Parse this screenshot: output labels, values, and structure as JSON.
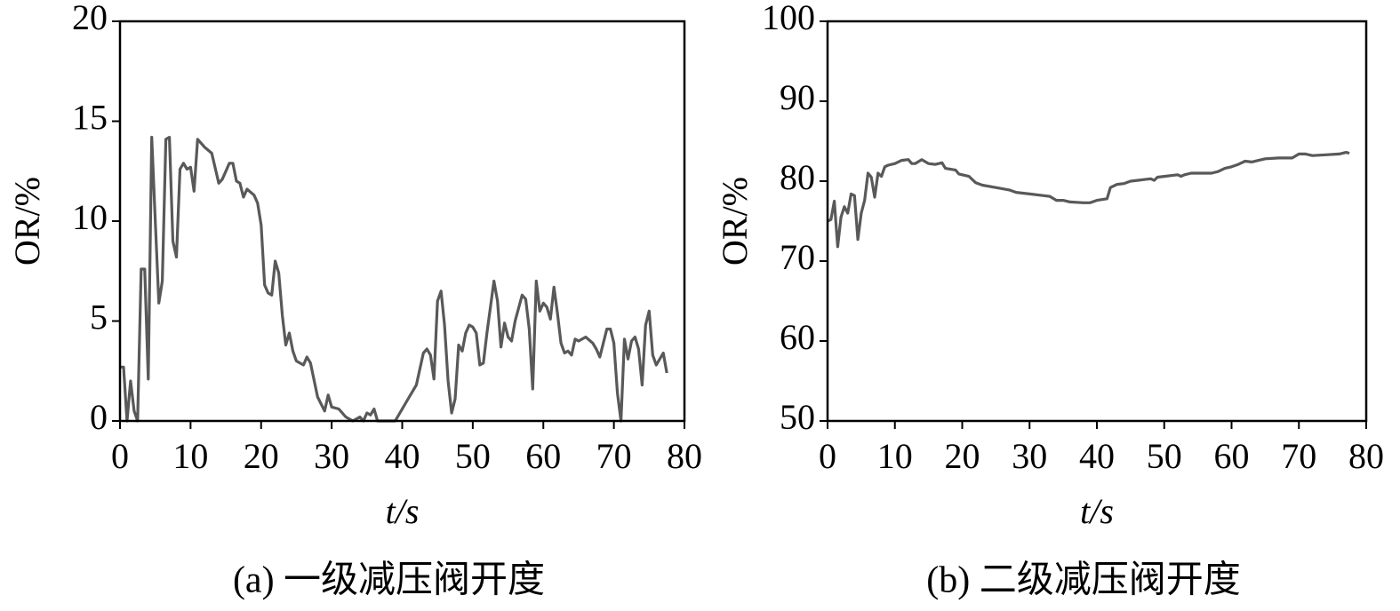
{
  "chart_data": [
    {
      "type": "line",
      "ylabel": "OR/%",
      "xlabel": "t/s",
      "caption": "(a) 一级减压阀开度",
      "color": "#595959",
      "xlim": [
        0,
        80
      ],
      "xticks": [
        0,
        10,
        20,
        30,
        40,
        50,
        60,
        70,
        80
      ],
      "ylim": [
        0,
        20
      ],
      "yticks": [
        0,
        5,
        10,
        15,
        20
      ],
      "x": [
        0,
        0.5,
        1,
        1.5,
        2,
        2.5,
        3,
        3.5,
        4,
        4.5,
        5,
        5.5,
        6,
        6.5,
        7,
        7.5,
        8,
        8.5,
        9,
        9.5,
        10,
        10.5,
        11,
        12,
        13,
        14,
        14.5,
        15,
        15.5,
        16,
        16.5,
        17,
        17.5,
        18,
        19,
        19.5,
        20,
        20.5,
        21,
        21.5,
        22,
        22.5,
        23,
        23.5,
        24,
        24.5,
        25,
        26,
        26.5,
        27,
        28,
        29,
        29.5,
        30,
        31,
        32,
        33,
        34,
        34.5,
        35,
        35.5,
        36,
        36.5,
        38,
        39,
        40,
        41,
        42,
        43,
        43.5,
        44,
        44.5,
        45,
        45.5,
        46,
        46.5,
        47,
        47.5,
        48,
        48.5,
        49,
        49.5,
        50,
        50.5,
        51,
        51.5,
        52,
        53,
        53.5,
        54,
        54.5,
        55,
        55.5,
        56,
        57,
        57.5,
        58,
        58.5,
        59,
        59.5,
        60,
        60.5,
        61,
        61.5,
        62,
        62.5,
        63,
        63.5,
        64,
        64.5,
        65,
        66,
        67,
        67.5,
        68,
        69,
        69.5,
        70,
        70.5,
        71,
        71.5,
        72,
        72.5,
        73,
        73.5,
        74,
        74.5,
        75,
        75.5,
        76,
        77,
        77.5
      ],
      "values": [
        2.7,
        2.7,
        0,
        2,
        0.5,
        0,
        7.6,
        7.6,
        2.1,
        14.2,
        10,
        5.9,
        7,
        14.1,
        14.2,
        9,
        8.2,
        12.6,
        12.9,
        12.6,
        12.7,
        11.5,
        14.1,
        13.7,
        13.4,
        11.9,
        12.1,
        12.5,
        12.9,
        12.9,
        12,
        11.9,
        11.2,
        11.6,
        11.3,
        10.9,
        9.8,
        6.8,
        6.4,
        6.3,
        8,
        7.4,
        5.3,
        3.8,
        4.4,
        3.5,
        3,
        2.8,
        3.2,
        2.9,
        1.2,
        0.5,
        1.3,
        0.7,
        0.6,
        0.2,
        0,
        0.2,
        0,
        0.4,
        0.3,
        0.6,
        0,
        0,
        0,
        0.6,
        1.2,
        1.8,
        3.4,
        3.6,
        3.3,
        2.1,
        6,
        6.5,
        4.8,
        2,
        0.4,
        1.1,
        3.8,
        3.5,
        4.4,
        4.8,
        4.7,
        4.4,
        2.8,
        2.9,
        4.4,
        7,
        6,
        3.7,
        4.9,
        4.2,
        4,
        5,
        6.3,
        6.1,
        4.6,
        1.6,
        7,
        5.5,
        5.9,
        5.7,
        5.1,
        6.7,
        5.4,
        3.9,
        3.4,
        3.5,
        3.3,
        4.1,
        4,
        4.2,
        3.9,
        3.6,
        3.2,
        4.6,
        4.6,
        3.9,
        1.4,
        0,
        4.1,
        3.1,
        4,
        4.2,
        3.6,
        1.8,
        4.8,
        5.5,
        3.3,
        2.8,
        3.4,
        2.4
      ]
    },
    {
      "type": "line",
      "ylabel": "OR/%",
      "xlabel": "t/s",
      "caption": "(b) 二级减压阀开度",
      "color": "#595959",
      "xlim": [
        0,
        80
      ],
      "xticks": [
        0,
        10,
        20,
        30,
        40,
        50,
        60,
        70,
        80
      ],
      "ylim": [
        50,
        100
      ],
      "yticks": [
        50,
        60,
        70,
        80,
        90,
        100
      ],
      "x": [
        0,
        0.5,
        1,
        1.5,
        2,
        2.5,
        3,
        3.5,
        4,
        4.5,
        5,
        5.5,
        6,
        6.5,
        7,
        7.5,
        8,
        8.5,
        9,
        10,
        11,
        12,
        12.5,
        13,
        14,
        15,
        16,
        17,
        17.5,
        19,
        19.5,
        21,
        22,
        23,
        25,
        27,
        28,
        30,
        32,
        33,
        34,
        35,
        36,
        38,
        39,
        40,
        41.5,
        42,
        43,
        44,
        45,
        46,
        47,
        48,
        48.5,
        49,
        50,
        51,
        52,
        52.5,
        53,
        54,
        56,
        57,
        58,
        59,
        60,
        61,
        62,
        63,
        64,
        65,
        67,
        69,
        70,
        71,
        72,
        74,
        76,
        77,
        77.5
      ],
      "values": [
        75,
        75.2,
        77.5,
        71.8,
        75.5,
        76.8,
        76,
        78.4,
        78.2,
        72.7,
        76,
        77.6,
        81,
        80.5,
        78,
        81,
        80.6,
        81.8,
        82,
        82.2,
        82.6,
        82.7,
        82.2,
        82.2,
        82.7,
        82.2,
        82.1,
        82.3,
        81.6,
        81.4,
        80.9,
        80.6,
        79.8,
        79.5,
        79.2,
        78.9,
        78.6,
        78.4,
        78.2,
        78.1,
        77.6,
        77.6,
        77.4,
        77.3,
        77.3,
        77.6,
        77.8,
        79.2,
        79.6,
        79.7,
        80,
        80.1,
        80.2,
        80.3,
        80.1,
        80.5,
        80.6,
        80.7,
        80.8,
        80.6,
        80.8,
        81,
        81,
        81,
        81.2,
        81.6,
        81.8,
        82.1,
        82.5,
        82.4,
        82.6,
        82.8,
        82.9,
        82.9,
        83.4,
        83.4,
        83.2,
        83.3,
        83.4,
        83.6,
        83.5
      ]
    }
  ]
}
